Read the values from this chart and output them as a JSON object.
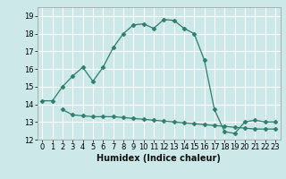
{
  "xlabel": "Humidex (Indice chaleur)",
  "ylabel": "",
  "bg_color": "#cce8e8",
  "grid_color": "#ffffff",
  "line_color": "#2e7d6e",
  "xlim": [
    -0.5,
    23.5
  ],
  "ylim": [
    12,
    19.5
  ],
  "yticks": [
    12,
    13,
    14,
    15,
    16,
    17,
    18,
    19
  ],
  "xticks": [
    0,
    1,
    2,
    3,
    4,
    5,
    6,
    7,
    8,
    9,
    10,
    11,
    12,
    13,
    14,
    15,
    16,
    17,
    18,
    19,
    20,
    21,
    22,
    23
  ],
  "line1_x": [
    0,
    1,
    2,
    3,
    4,
    5,
    6,
    7,
    8,
    9,
    10,
    11,
    12,
    13,
    14,
    15,
    16,
    17,
    18,
    19,
    20,
    21,
    22,
    23
  ],
  "line1_y": [
    14.2,
    14.2,
    15.0,
    15.6,
    16.1,
    15.3,
    16.1,
    17.2,
    18.0,
    18.5,
    18.55,
    18.3,
    18.8,
    18.75,
    18.3,
    18.0,
    16.5,
    13.7,
    12.45,
    12.35,
    13.0,
    13.1,
    13.0,
    13.0
  ],
  "line2_x": [
    2,
    3,
    4,
    5,
    6,
    7,
    8,
    9,
    10,
    11,
    12,
    13,
    14,
    15,
    16,
    17,
    18,
    19,
    20,
    21,
    22,
    23
  ],
  "line2_y": [
    13.7,
    13.4,
    13.35,
    13.3,
    13.3,
    13.3,
    13.25,
    13.2,
    13.15,
    13.1,
    13.05,
    13.0,
    12.95,
    12.9,
    12.85,
    12.8,
    12.75,
    12.7,
    12.65,
    12.6,
    12.6,
    12.6
  ],
  "tick_fontsize": 6.0,
  "xlabel_fontsize": 7.0
}
